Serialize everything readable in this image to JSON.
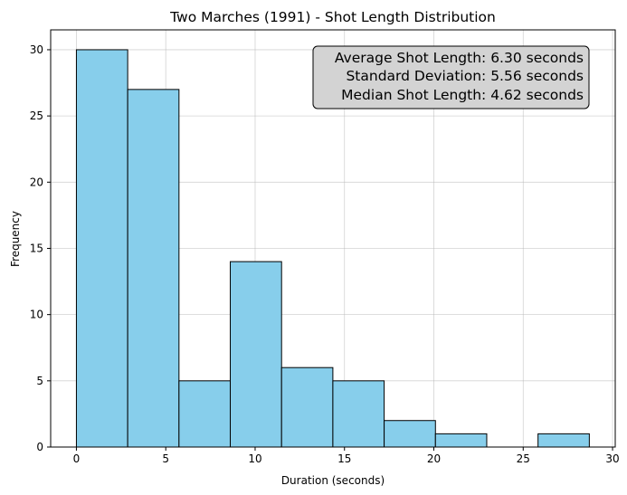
{
  "chart_data": {
    "type": "bar",
    "title": "Two Marches (1991) - Shot Length Distribution",
    "xlabel": "Duration (seconds)",
    "ylabel": "Frequency",
    "xlim": [
      -1.44,
      30.15
    ],
    "ylim": [
      0,
      31.5
    ],
    "xticks": [
      0,
      5,
      10,
      15,
      20,
      25,
      30
    ],
    "yticks": [
      0,
      5,
      10,
      15,
      20,
      25,
      30
    ],
    "grid": true,
    "bar_color": "#87CEEB",
    "edge_color": "#000000",
    "bins": [
      {
        "x0": 0.0,
        "x1": 2.87,
        "count": 30
      },
      {
        "x0": 2.87,
        "x1": 5.74,
        "count": 27
      },
      {
        "x0": 5.74,
        "x1": 8.61,
        "count": 5
      },
      {
        "x0": 8.61,
        "x1": 11.48,
        "count": 14
      },
      {
        "x0": 11.48,
        "x1": 14.35,
        "count": 6
      },
      {
        "x0": 14.35,
        "x1": 17.22,
        "count": 5
      },
      {
        "x0": 17.22,
        "x1": 20.09,
        "count": 2
      },
      {
        "x0": 20.09,
        "x1": 22.96,
        "count": 1
      },
      {
        "x0": 22.96,
        "x1": 25.83,
        "count": 0
      },
      {
        "x0": 25.83,
        "x1": 28.7,
        "count": 1
      }
    ],
    "annotation": {
      "lines": [
        "Average Shot Length: 6.30 seconds",
        "Standard Deviation: 5.56 seconds",
        "Median Shot Length: 4.62 seconds"
      ],
      "position": "top-right",
      "box_color": "#D3D3D3"
    }
  }
}
